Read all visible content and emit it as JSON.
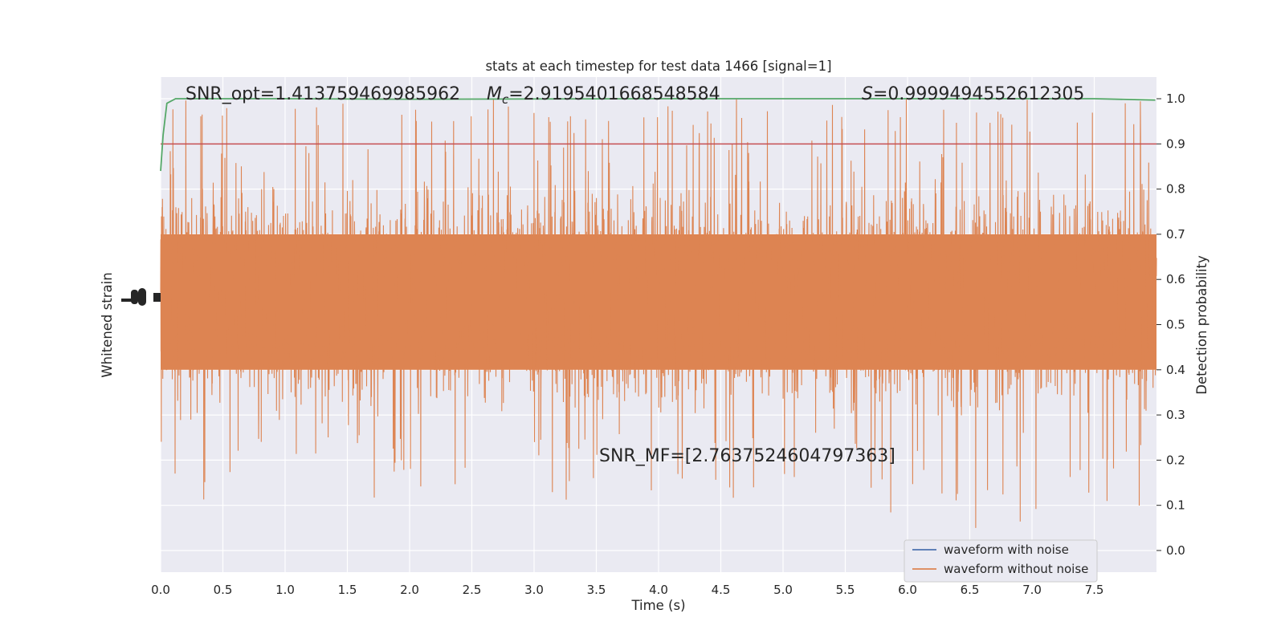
{
  "chart_data": {
    "type": "line",
    "title": "stats at each timestep for test data 1466 [signal=1]",
    "xlabel": "Time (s)",
    "ylabel_left": "Whitened strain",
    "ylabel_right": "Detection probability",
    "xlim": [
      0,
      8
    ],
    "ylim_right": [
      -0.048,
      1.048
    ],
    "x_ticks": [
      "0.0",
      "0.5",
      "1.0",
      "1.5",
      "2.0",
      "2.5",
      "3.0",
      "3.5",
      "4.0",
      "4.5",
      "5.0",
      "5.5",
      "6.0",
      "6.5",
      "7.0",
      "7.5"
    ],
    "x_tick_values": [
      0.0,
      0.5,
      1.0,
      1.5,
      2.0,
      2.5,
      3.0,
      3.5,
      4.0,
      4.5,
      5.0,
      5.5,
      6.0,
      6.5,
      7.0,
      7.5
    ],
    "y_right_ticks": [
      "0.0",
      "0.1",
      "0.2",
      "0.3",
      "0.4",
      "0.5",
      "0.6",
      "0.7",
      "0.8",
      "0.9",
      "1.0"
    ],
    "y_right_tick_values": [
      0.0,
      0.1,
      0.2,
      0.3,
      0.4,
      0.5,
      0.6,
      0.7,
      0.8,
      0.9,
      1.0
    ],
    "grid": true,
    "legend_position": "lower-right",
    "series": [
      {
        "name": "waveform with noise",
        "color": "#4c72b0",
        "visible_extent": "hidden beneath orange series"
      },
      {
        "name": "waveform without noise",
        "color": "#dd8452",
        "center": 0.56,
        "dense_band": [
          0.4,
          0.7
        ],
        "spike_range": [
          0.0,
          1.0
        ],
        "x_range": [
          0,
          8
        ]
      }
    ],
    "detection_probability": {
      "color": "#55a868",
      "x": [
        0.0,
        0.02,
        0.05,
        0.12,
        0.3,
        1.0,
        2.0,
        4.0,
        6.0,
        7.5,
        7.99
      ],
      "y": [
        0.84,
        0.92,
        0.99,
        1.0,
        1.0,
        1.0,
        0.999,
        1.0,
        1.0,
        1.0,
        0.997
      ]
    },
    "threshold": {
      "color": "#c44e52",
      "value": 0.9
    },
    "annotations": {
      "snr_opt": "SNR_opt=1.413759469985962",
      "mc_symbol": "M",
      "mc_sub": "c",
      "mc_value": "=2.9195401668548584",
      "s_symbol": "S",
      "s_value": "=0.9999494552612305",
      "snr_mf": "SNR_MF=[2.7637524604797363]"
    }
  }
}
